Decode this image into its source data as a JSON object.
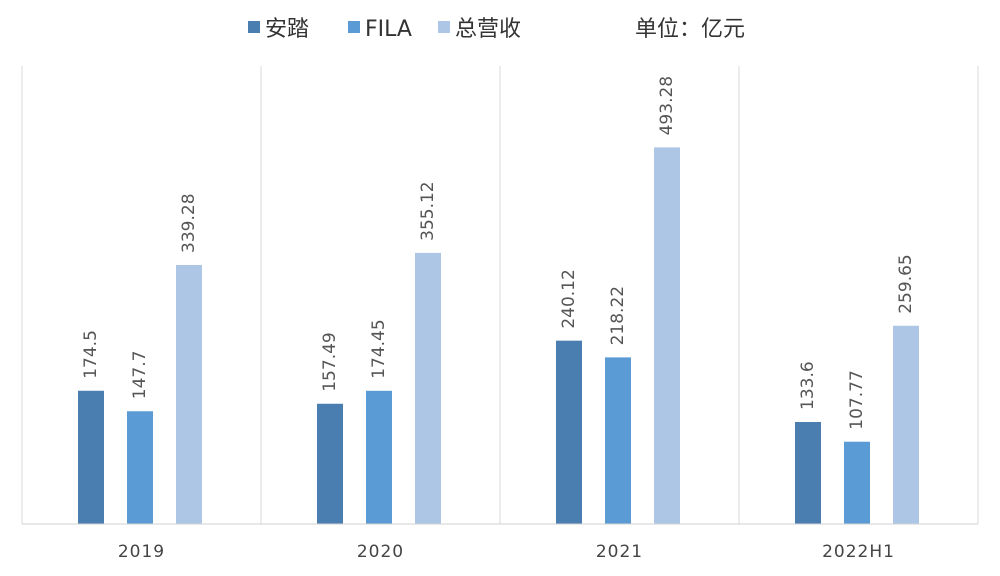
{
  "chart_data": {
    "type": "bar",
    "unit_label": "单位：亿元",
    "categories": [
      "2019",
      "2020",
      "2021",
      "2022H1"
    ],
    "series": [
      {
        "name": "安踏",
        "color": "#4a7eb0",
        "values": [
          174.5,
          157.49,
          240.12,
          133.6
        ],
        "labels": [
          "174.5",
          "157.49",
          "240.12",
          "133.6"
        ]
      },
      {
        "name": "FILA",
        "color": "#5b9bd5",
        "values": [
          147.7,
          174.45,
          218.22,
          107.77
        ],
        "labels": [
          "147.7",
          "174.45",
          "218.22",
          "107.77"
        ]
      },
      {
        "name": "总营收",
        "color": "#adc6e5",
        "values": [
          339.28,
          355.12,
          493.28,
          259.65
        ],
        "labels": [
          "339.28",
          "355.12",
          "493.28",
          "259.65"
        ]
      }
    ],
    "ylim": [
      0,
      600
    ],
    "legend_position": "top",
    "grid": false,
    "category_separators": true
  }
}
